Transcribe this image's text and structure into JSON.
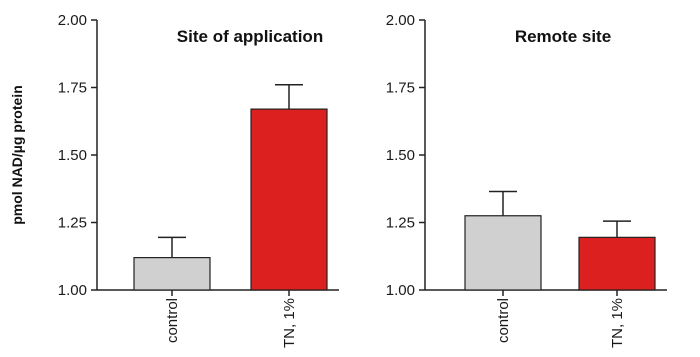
{
  "ylabel": "pmol NAD/µg protein",
  "chart_data": [
    {
      "type": "bar",
      "title": "Site of application",
      "categories": [
        "control",
        "TN, 1%"
      ],
      "values": [
        1.12,
        1.67
      ],
      "errors": [
        0.075,
        0.09
      ],
      "ylim": [
        1.0,
        2.0
      ],
      "yticks": [
        "1.00",
        "1.25",
        "1.50",
        "1.75",
        "2.00"
      ],
      "colors": [
        "#d0d0d0",
        "#dc1f1f"
      ]
    },
    {
      "type": "bar",
      "title": "Remote site",
      "categories": [
        "control",
        "TN, 1%"
      ],
      "values": [
        1.275,
        1.195
      ],
      "errors": [
        0.09,
        0.06
      ],
      "ylim": [
        1.0,
        2.0
      ],
      "yticks": [
        "1.00",
        "1.25",
        "1.50",
        "1.75",
        "2.00"
      ],
      "colors": [
        "#d0d0d0",
        "#dc1f1f"
      ]
    }
  ]
}
